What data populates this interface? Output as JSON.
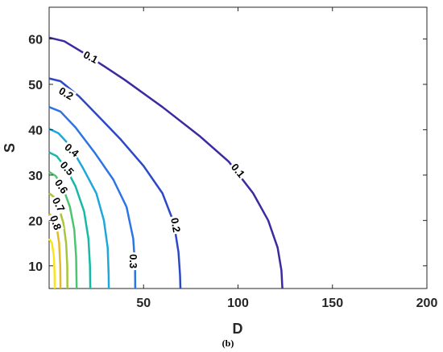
{
  "chart_data": {
    "type": "contour",
    "xlabel": "D",
    "ylabel": "S",
    "xlim": [
      0,
      200
    ],
    "ylim": [
      5,
      67
    ],
    "xticks": [
      "50",
      "100",
      "150",
      "200"
    ],
    "yticks": [
      "10",
      "20",
      "30",
      "40",
      "50",
      "60"
    ],
    "grid": false,
    "levels": [
      {
        "level": "0.1",
        "color": "#3b2aa0",
        "points": [
          [
            0,
            60.3
          ],
          [
            8,
            59.5
          ],
          [
            20,
            56.5
          ],
          [
            40,
            51
          ],
          [
            60,
            45
          ],
          [
            80,
            38.5
          ],
          [
            95,
            33
          ],
          [
            108,
            26
          ],
          [
            116,
            20
          ],
          [
            121,
            14
          ],
          [
            123,
            9
          ],
          [
            123.5,
            5
          ]
        ]
      },
      {
        "level": "0.2",
        "color": "#2b48c8",
        "points": [
          [
            0,
            51.3
          ],
          [
            6,
            50.7
          ],
          [
            16,
            47.3
          ],
          [
            26,
            43
          ],
          [
            38,
            37.8
          ],
          [
            50,
            32
          ],
          [
            60,
            26
          ],
          [
            66,
            19.5
          ],
          [
            68.5,
            13
          ],
          [
            69.3,
            8
          ],
          [
            69.5,
            5
          ]
        ]
      },
      {
        "level": "0.3",
        "color": "#2d74e4",
        "points": [
          [
            0,
            45
          ],
          [
            6,
            44
          ],
          [
            14,
            40.5
          ],
          [
            24,
            35
          ],
          [
            34,
            29
          ],
          [
            41,
            23
          ],
          [
            44.5,
            16
          ],
          [
            45.5,
            10
          ],
          [
            45.6,
            5
          ]
        ]
      },
      {
        "level": "0.4",
        "color": "#1ea7d8",
        "points": [
          [
            0,
            40.2
          ],
          [
            5,
            39.2
          ],
          [
            11,
            36.5
          ],
          [
            18,
            31.5
          ],
          [
            25,
            26
          ],
          [
            29,
            20
          ],
          [
            31,
            14
          ],
          [
            31.5,
            8
          ],
          [
            31.6,
            5
          ]
        ]
      },
      {
        "level": "0.5",
        "color": "#17b8a8",
        "points": [
          [
            0,
            35
          ],
          [
            4,
            34.2
          ],
          [
            9,
            31.5
          ],
          [
            14,
            27.5
          ],
          [
            18.5,
            22
          ],
          [
            20.8,
            16
          ],
          [
            21.6,
            10
          ],
          [
            21.8,
            5
          ]
        ]
      },
      {
        "level": "0.6",
        "color": "#4cc470",
        "points": [
          [
            0,
            30.7
          ],
          [
            3.5,
            29.8
          ],
          [
            7.5,
            27
          ],
          [
            11,
            23
          ],
          [
            13.3,
            18
          ],
          [
            14.3,
            12
          ],
          [
            14.6,
            5
          ]
        ]
      },
      {
        "level": "0.7",
        "color": "#a8c638",
        "points": [
          [
            0,
            26
          ],
          [
            2.5,
            25.2
          ],
          [
            5,
            23
          ],
          [
            7.5,
            19.5
          ],
          [
            9,
            15
          ],
          [
            9.6,
            10
          ],
          [
            9.7,
            5
          ]
        ]
      },
      {
        "level": "0.8",
        "color": "#e3bb2a",
        "points": [
          [
            0,
            21.5
          ],
          [
            2,
            20.8
          ],
          [
            4,
            18.6
          ],
          [
            5.3,
            15
          ],
          [
            5.9,
            10
          ],
          [
            6,
            5
          ]
        ]
      },
      {
        "level": "0.9",
        "color": "#f9e51f",
        "points": [
          [
            0,
            16
          ],
          [
            1.5,
            15
          ],
          [
            2.5,
            12
          ],
          [
            2.9,
            8
          ],
          [
            3,
            5
          ]
        ]
      }
    ],
    "labels": [
      {
        "text": "0.1",
        "x": 22,
        "y": 56,
        "rot": 28
      },
      {
        "text": "0.1",
        "x": 100,
        "y": 31,
        "rot": 50
      },
      {
        "text": "0.2",
        "x": 9,
        "y": 48,
        "rot": 30
      },
      {
        "text": "0.2",
        "x": 67,
        "y": 19,
        "rot": 80
      },
      {
        "text": "0.3",
        "x": 44.6,
        "y": 11,
        "rot": 90
      },
      {
        "text": "0.4",
        "x": 12,
        "y": 35.5,
        "rot": 40
      },
      {
        "text": "0.5",
        "x": 9.5,
        "y": 31.5,
        "rot": 48
      },
      {
        "text": "0.6",
        "x": 6.5,
        "y": 27.5,
        "rot": 55
      },
      {
        "text": "0.7",
        "x": 5,
        "y": 23.5,
        "rot": 62
      },
      {
        "text": "0.8",
        "x": 3.5,
        "y": 19.5,
        "rot": 70
      }
    ]
  },
  "caption": "(b)"
}
